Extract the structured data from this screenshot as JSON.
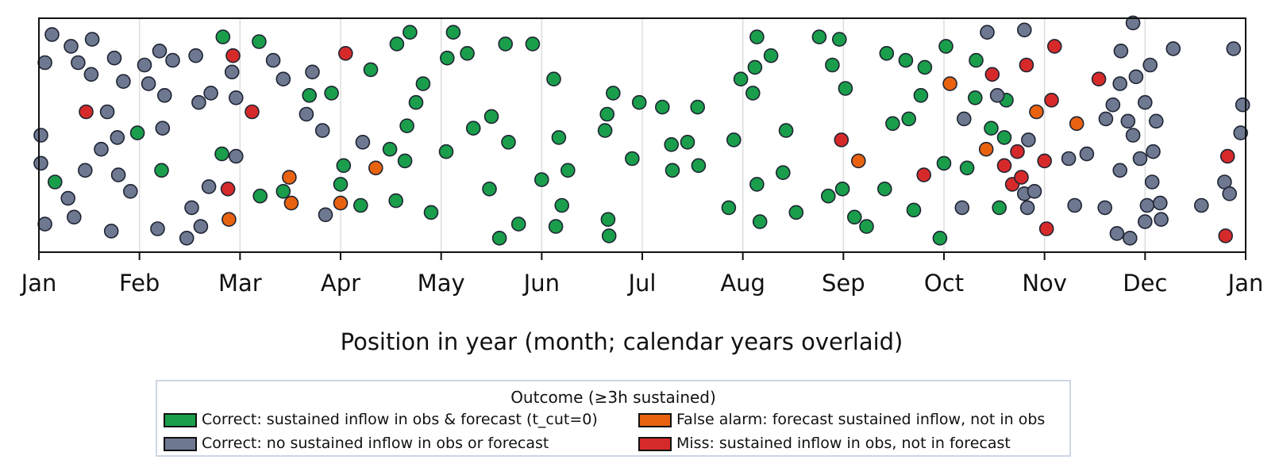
{
  "chart_data": {
    "type": "scatter",
    "title": "",
    "xlabel": "Position in year (month; calendar years overlaid)",
    "ylabel": "",
    "x_ticks": [
      "Jan",
      "Feb",
      "Mar",
      "Apr",
      "May",
      "Jun",
      "Jul",
      "Aug",
      "Sep",
      "Oct",
      "Nov",
      "Dec",
      "Jan"
    ],
    "xlim": [
      0,
      12
    ],
    "ylim": [
      0,
      1
    ],
    "grid": "vertical",
    "legend": {
      "title": "Outcome (≥3h sustained)",
      "placement": "below"
    },
    "colors": {
      "correct_inflow": "#1a9e4b",
      "correct_none": "#6e7890",
      "false_alarm": "#e8620f",
      "miss": "#d62a2a",
      "edge": "#1e2433",
      "grid": "#dddddd"
    },
    "series": [
      {
        "key": "correct_inflow",
        "name": "Correct: sustained inflow in obs & forecast (t_cut=0)",
        "points": [
          [
            0.16,
            0.3
          ],
          [
            0.98,
            0.51
          ],
          [
            1.22,
            0.35
          ],
          [
            1.82,
            0.42
          ],
          [
            1.83,
            0.92
          ],
          [
            2.2,
            0.24
          ],
          [
            2.19,
            0.9
          ],
          [
            2.43,
            0.26
          ],
          [
            2.69,
            0.67
          ],
          [
            2.91,
            0.68
          ],
          [
            3.0,
            0.29
          ],
          [
            3.03,
            0.37
          ],
          [
            3.2,
            0.2
          ],
          [
            3.3,
            0.78
          ],
          [
            3.49,
            0.44
          ],
          [
            3.56,
            0.89
          ],
          [
            3.55,
            0.22
          ],
          [
            3.66,
            0.54
          ],
          [
            3.64,
            0.39
          ],
          [
            3.69,
            0.94
          ],
          [
            3.75,
            0.64
          ],
          [
            3.82,
            0.72
          ],
          [
            3.9,
            0.17
          ],
          [
            4.05,
            0.43
          ],
          [
            4.06,
            0.83
          ],
          [
            4.12,
            0.94
          ],
          [
            4.26,
            0.85
          ],
          [
            4.32,
            0.53
          ],
          [
            4.5,
            0.58
          ],
          [
            4.48,
            0.27
          ],
          [
            4.58,
            0.06
          ],
          [
            4.64,
            0.89
          ],
          [
            4.67,
            0.47
          ],
          [
            4.77,
            0.12
          ],
          [
            4.91,
            0.89
          ],
          [
            5.0,
            0.31
          ],
          [
            5.12,
            0.74
          ],
          [
            5.14,
            0.11
          ],
          [
            5.17,
            0.49
          ],
          [
            5.2,
            0.2
          ],
          [
            5.26,
            0.35
          ],
          [
            5.63,
            0.52
          ],
          [
            5.65,
            0.59
          ],
          [
            5.66,
            0.14
          ],
          [
            5.67,
            0.07
          ],
          [
            5.71,
            0.68
          ],
          [
            5.9,
            0.4
          ],
          [
            5.97,
            0.64
          ],
          [
            6.2,
            0.62
          ],
          [
            6.29,
            0.46
          ],
          [
            6.3,
            0.35
          ],
          [
            6.45,
            0.47
          ],
          [
            6.55,
            0.62
          ],
          [
            6.56,
            0.37
          ],
          [
            6.86,
            0.19
          ],
          [
            6.91,
            0.48
          ],
          [
            6.98,
            0.74
          ],
          [
            7.1,
            0.68
          ],
          [
            7.12,
            0.79
          ],
          [
            7.14,
            0.92
          ],
          [
            7.14,
            0.29
          ],
          [
            7.17,
            0.13
          ],
          [
            7.28,
            0.84
          ],
          [
            7.4,
            0.34
          ],
          [
            7.43,
            0.52
          ],
          [
            7.53,
            0.17
          ],
          [
            7.76,
            0.92
          ],
          [
            7.85,
            0.24
          ],
          [
            7.89,
            0.8
          ],
          [
            7.96,
            0.91
          ],
          [
            7.99,
            0.27
          ],
          [
            8.02,
            0.7
          ],
          [
            8.11,
            0.15
          ],
          [
            8.23,
            0.11
          ],
          [
            8.41,
            0.27
          ],
          [
            8.43,
            0.85
          ],
          [
            8.49,
            0.55
          ],
          [
            8.62,
            0.82
          ],
          [
            8.65,
            0.57
          ],
          [
            8.7,
            0.18
          ],
          [
            8.77,
            0.67
          ],
          [
            8.81,
            0.79
          ],
          [
            8.96,
            0.06
          ],
          [
            9.0,
            0.38
          ],
          [
            9.02,
            0.88
          ],
          [
            9.23,
            0.36
          ],
          [
            9.31,
            0.66
          ],
          [
            9.32,
            0.82
          ],
          [
            9.47,
            0.53
          ],
          [
            9.55,
            0.19
          ],
          [
            9.6,
            0.49
          ],
          [
            9.62,
            0.65
          ]
        ]
      },
      {
        "key": "correct_none",
        "name": "Correct: no sustained inflow in obs or forecast",
        "points": [
          [
            0.02,
            0.5
          ],
          [
            0.02,
            0.38
          ],
          [
            0.06,
            0.81
          ],
          [
            0.06,
            0.12
          ],
          [
            0.13,
            0.93
          ],
          [
            0.29,
            0.23
          ],
          [
            0.32,
            0.88
          ],
          [
            0.35,
            0.15
          ],
          [
            0.39,
            0.81
          ],
          [
            0.46,
            0.35
          ],
          [
            0.52,
            0.76
          ],
          [
            0.53,
            0.91
          ],
          [
            0.62,
            0.44
          ],
          [
            0.68,
            0.6
          ],
          [
            0.72,
            0.09
          ],
          [
            0.75,
            0.83
          ],
          [
            0.78,
            0.49
          ],
          [
            0.79,
            0.33
          ],
          [
            0.84,
            0.73
          ],
          [
            0.91,
            0.26
          ],
          [
            1.05,
            0.8
          ],
          [
            1.09,
            0.72
          ],
          [
            1.18,
            0.1
          ],
          [
            1.2,
            0.86
          ],
          [
            1.23,
            0.53
          ],
          [
            1.25,
            0.67
          ],
          [
            1.33,
            0.82
          ],
          [
            1.47,
            0.06
          ],
          [
            1.52,
            0.19
          ],
          [
            1.56,
            0.84
          ],
          [
            1.59,
            0.64
          ],
          [
            1.61,
            0.11
          ],
          [
            1.69,
            0.28
          ],
          [
            1.71,
            0.68
          ],
          [
            1.92,
            0.77
          ],
          [
            1.96,
            0.66
          ],
          [
            1.96,
            0.41
          ],
          [
            2.33,
            0.82
          ],
          [
            2.43,
            0.74
          ],
          [
            2.66,
            0.59
          ],
          [
            2.72,
            0.77
          ],
          [
            2.82,
            0.52
          ],
          [
            2.85,
            0.16
          ],
          [
            3.22,
            0.47
          ],
          [
            9.18,
            0.19
          ],
          [
            9.2,
            0.57
          ],
          [
            9.43,
            0.94
          ],
          [
            9.53,
            0.67
          ],
          [
            9.8,
            0.25
          ],
          [
            9.83,
            0.19
          ],
          [
            9.8,
            0.95
          ],
          [
            9.84,
            0.48
          ],
          [
            9.9,
            0.26
          ],
          [
            10.24,
            0.4
          ],
          [
            10.3,
            0.2
          ],
          [
            10.42,
            0.42
          ],
          [
            10.6,
            0.19
          ],
          [
            10.61,
            0.57
          ],
          [
            10.68,
            0.63
          ],
          [
            10.72,
            0.08
          ],
          [
            10.75,
            0.35
          ],
          [
            10.75,
            0.72
          ],
          [
            10.76,
            0.86
          ],
          [
            10.83,
            0.56
          ],
          [
            10.85,
            0.06
          ],
          [
            10.88,
            0.5
          ],
          [
            10.88,
            0.98
          ],
          [
            10.91,
            0.75
          ],
          [
            10.95,
            0.4
          ],
          [
            11.0,
            0.64
          ],
          [
            11.0,
            0.13
          ],
          [
            11.02,
            0.2
          ],
          [
            11.05,
            0.8
          ],
          [
            11.07,
            0.3
          ],
          [
            11.08,
            0.43
          ],
          [
            11.11,
            0.56
          ],
          [
            11.15,
            0.21
          ],
          [
            11.16,
            0.14
          ],
          [
            11.28,
            0.87
          ],
          [
            11.56,
            0.2
          ],
          [
            11.79,
            0.3
          ],
          [
            11.84,
            0.25
          ],
          [
            11.88,
            0.87
          ],
          [
            11.95,
            0.51
          ],
          [
            11.97,
            0.63
          ]
        ]
      },
      {
        "key": "false_alarm",
        "name": "False alarm: forecast sustained inflow, not in obs",
        "points": [
          [
            1.89,
            0.14
          ],
          [
            2.49,
            0.32
          ],
          [
            2.51,
            0.21
          ],
          [
            3.0,
            0.21
          ],
          [
            3.35,
            0.36
          ],
          [
            8.15,
            0.39
          ],
          [
            9.06,
            0.72
          ],
          [
            9.42,
            0.44
          ],
          [
            9.92,
            0.6
          ],
          [
            10.32,
            0.55
          ]
        ]
      },
      {
        "key": "miss",
        "name": "Miss: sustained inflow in obs, not in forecast",
        "points": [
          [
            0.47,
            0.6
          ],
          [
            1.93,
            0.84
          ],
          [
            1.88,
            0.27
          ],
          [
            2.12,
            0.6
          ],
          [
            3.05,
            0.85
          ],
          [
            7.98,
            0.48
          ],
          [
            8.8,
            0.33
          ],
          [
            9.48,
            0.76
          ],
          [
            9.6,
            0.37
          ],
          [
            9.68,
            0.29
          ],
          [
            9.73,
            0.43
          ],
          [
            9.77,
            0.32
          ],
          [
            9.82,
            0.8
          ],
          [
            10.0,
            0.39
          ],
          [
            10.02,
            0.1
          ],
          [
            10.07,
            0.65
          ],
          [
            10.1,
            0.88
          ],
          [
            10.54,
            0.74
          ],
          [
            11.8,
            0.07
          ],
          [
            11.82,
            0.41
          ]
        ]
      }
    ]
  }
}
